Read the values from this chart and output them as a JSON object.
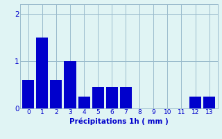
{
  "categories": [
    0,
    1,
    2,
    3,
    4,
    5,
    6,
    7,
    8,
    9,
    10,
    11,
    12,
    13
  ],
  "values": [
    0.6,
    1.5,
    0.6,
    1.0,
    0.25,
    0.45,
    0.45,
    0.45,
    0,
    0,
    0,
    0,
    0.25,
    0.25
  ],
  "bar_color": "#0000cc",
  "background_color": "#e0f4f4",
  "grid_color": "#99bbcc",
  "xlabel": "Précipitations 1h ( mm )",
  "xlabel_color": "#0000cc",
  "tick_color": "#0000cc",
  "ylim": [
    0,
    2.2
  ],
  "yticks": [
    0,
    1,
    2
  ],
  "bar_width": 0.85
}
